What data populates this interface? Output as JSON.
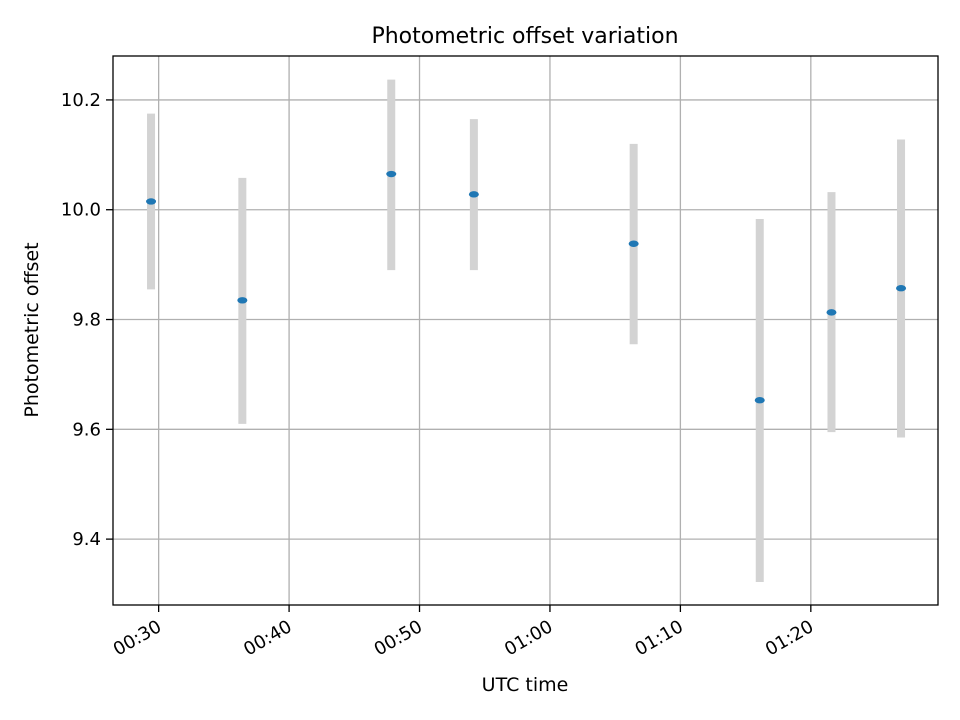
{
  "chart_data": {
    "type": "scatter",
    "title": "Photometric offset variation",
    "xlabel": "UTC time",
    "ylabel": "Photometric offset",
    "x_unit": "UTC time (HH:MM)",
    "x_ticks": [
      "00:30",
      "00:40",
      "00:50",
      "01:00",
      "01:10",
      "01:20"
    ],
    "y_ticks": [
      "9.4",
      "9.6",
      "9.8",
      "10.0",
      "10.2"
    ],
    "xlim": [
      "00:26:30",
      "01:29:45"
    ],
    "ylim": [
      9.28,
      10.28
    ],
    "grid": true,
    "legend": "none",
    "points": [
      {
        "x": "00:29:25",
        "y": 10.015,
        "yerr_low": 9.855,
        "yerr_high": 10.175
      },
      {
        "x": "00:36:25",
        "y": 9.835,
        "yerr_low": 9.61,
        "yerr_high": 10.058
      },
      {
        "x": "00:47:50",
        "y": 10.065,
        "yerr_low": 9.89,
        "yerr_high": 10.237
      },
      {
        "x": "00:54:10",
        "y": 10.028,
        "yerr_low": 9.89,
        "yerr_high": 10.165
      },
      {
        "x": "01:06:25",
        "y": 9.938,
        "yerr_low": 9.755,
        "yerr_high": 10.12
      },
      {
        "x": "01:16:05",
        "y": 9.653,
        "yerr_low": 9.322,
        "yerr_high": 9.983
      },
      {
        "x": "01:21:35",
        "y": 9.813,
        "yerr_low": 9.595,
        "yerr_high": 10.032
      },
      {
        "x": "01:26:55",
        "y": 9.857,
        "yerr_low": 9.585,
        "yerr_high": 10.128
      }
    ],
    "colors": {
      "marker": "#1f77b4",
      "errorbar": "#d3d3d3",
      "grid": "#b0b0b0"
    }
  }
}
